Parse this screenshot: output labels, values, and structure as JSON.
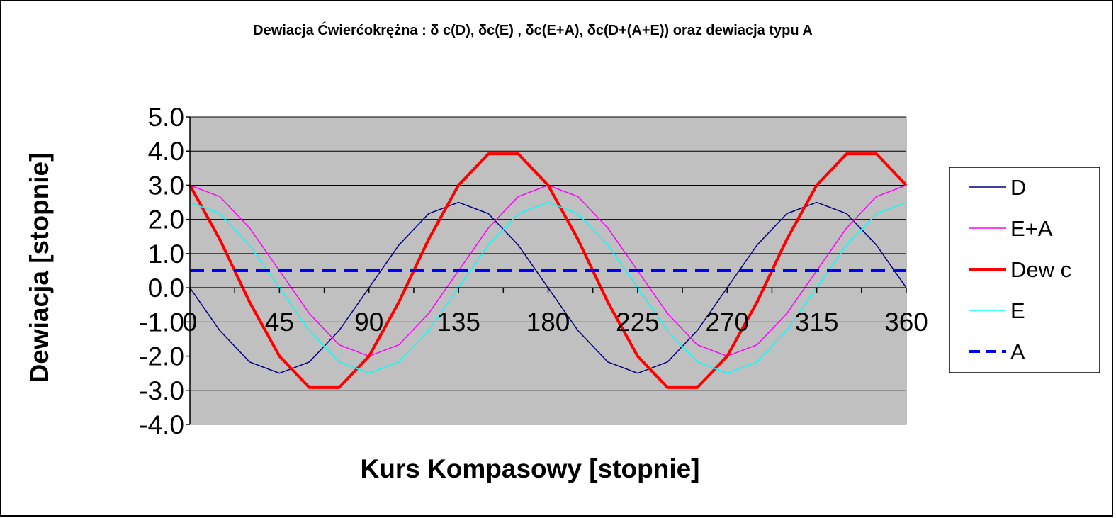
{
  "chart_data": {
    "type": "line",
    "title": "Dewiacja Ćwierćokrężna : δ c(D), δc(E) , δc(E+A), δc(D+(A+E)) oraz dewiacja typu A",
    "xlabel": "Kurs Kompasowy  [stopnie]",
    "ylabel": "Dewiacja [stopnie]",
    "xlim": [
      0,
      360
    ],
    "ylim": [
      -4,
      5
    ],
    "x_ticks": [
      0,
      45,
      90,
      135,
      180,
      225,
      270,
      315,
      360
    ],
    "x_tick_labels": [
      "0",
      "45",
      "90",
      "135",
      "180",
      "225",
      "270",
      "315",
      "360"
    ],
    "y_ticks": [
      5,
      4,
      3,
      2,
      1,
      0,
      -1,
      -2,
      -3,
      -4
    ],
    "y_tick_labels": [
      "5.0",
      "4.0",
      "3.0",
      "2.0",
      "1.0",
      "0.0",
      "-1.0",
      "-2.0",
      "-3.0",
      "-4.0"
    ],
    "grid": "horizontal",
    "plot_background": "#c0c0c0",
    "legend_position": "right",
    "x": [
      0,
      15,
      30,
      45,
      60,
      75,
      90,
      105,
      120,
      135,
      150,
      165,
      180,
      195,
      210,
      225,
      240,
      255,
      270,
      285,
      300,
      315,
      330,
      345,
      360
    ],
    "series": [
      {
        "name": "D",
        "color": "#000080",
        "style": "solid",
        "width": 1.5,
        "values": [
          0.0,
          -1.25,
          -2.17,
          -2.5,
          -2.17,
          -1.25,
          0.0,
          1.25,
          2.17,
          2.5,
          2.17,
          1.25,
          0.0,
          -1.25,
          -2.17,
          -2.5,
          -2.17,
          -1.25,
          0.0,
          1.25,
          2.17,
          2.5,
          2.17,
          1.25,
          0.0
        ]
      },
      {
        "name": "E+A",
        "color": "#ff00ff",
        "style": "solid",
        "width": 1.5,
        "values": [
          3.0,
          2.67,
          1.75,
          0.5,
          -0.75,
          -1.67,
          -2.0,
          -1.67,
          -0.75,
          0.5,
          1.75,
          2.67,
          3.0,
          2.67,
          1.75,
          0.5,
          -0.75,
          -1.67,
          -2.0,
          -1.67,
          -0.75,
          0.5,
          1.75,
          2.67,
          3.0
        ]
      },
      {
        "name": "Dew c",
        "color": "#ff0000",
        "style": "solid",
        "width": 4,
        "values": [
          3.0,
          1.42,
          -0.42,
          -2.0,
          -2.92,
          -2.92,
          -2.0,
          -0.42,
          1.42,
          3.0,
          3.92,
          3.92,
          3.0,
          1.42,
          -0.42,
          -2.0,
          -2.92,
          -2.92,
          -2.0,
          -0.42,
          1.42,
          3.0,
          3.92,
          3.92,
          3.0
        ]
      },
      {
        "name": "E",
        "color": "#00ffff",
        "style": "solid",
        "width": 1.5,
        "values": [
          2.5,
          2.17,
          1.25,
          0.0,
          -1.25,
          -2.17,
          -2.5,
          -2.17,
          -1.25,
          0.0,
          1.25,
          2.17,
          2.5,
          2.17,
          1.25,
          0.0,
          -1.25,
          -2.17,
          -2.5,
          -2.17,
          -1.25,
          0.0,
          1.25,
          2.17,
          2.5
        ]
      },
      {
        "name": "A",
        "color": "#0000ff",
        "style": "dashed",
        "width": 4,
        "values": [
          0.5,
          0.5,
          0.5,
          0.5,
          0.5,
          0.5,
          0.5,
          0.5,
          0.5,
          0.5,
          0.5,
          0.5,
          0.5,
          0.5,
          0.5,
          0.5,
          0.5,
          0.5,
          0.5,
          0.5,
          0.5,
          0.5,
          0.5,
          0.5,
          0.5
        ]
      }
    ]
  }
}
